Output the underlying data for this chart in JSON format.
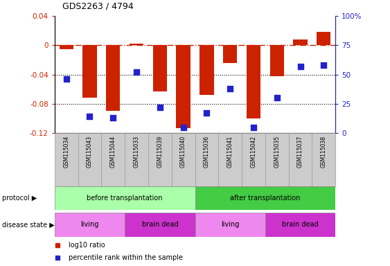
{
  "title": "GDS2263 / 4794",
  "samples": [
    "GSM115034",
    "GSM115043",
    "GSM115044",
    "GSM115033",
    "GSM115039",
    "GSM115040",
    "GSM115036",
    "GSM115041",
    "GSM115042",
    "GSM115035",
    "GSM115037",
    "GSM115038"
  ],
  "log10_ratio": [
    -0.005,
    -0.072,
    -0.09,
    0.002,
    -0.063,
    -0.113,
    -0.068,
    -0.024,
    -0.1,
    -0.042,
    0.008,
    0.018
  ],
  "percentile_rank": [
    46,
    14,
    13,
    52,
    22,
    5,
    17,
    38,
    5,
    30,
    57,
    58
  ],
  "ylim_left": [
    -0.12,
    0.04
  ],
  "ylim_right": [
    0,
    100
  ],
  "yticks_left": [
    -0.12,
    -0.08,
    -0.04,
    0,
    0.04
  ],
  "yticks_right": [
    0,
    25,
    50,
    75,
    100
  ],
  "dotted_hlines": [
    -0.04,
    -0.08
  ],
  "bar_color": "#cc2200",
  "dot_color": "#2222cc",
  "dashed_line_color": "#cc2200",
  "protocol_before_color": "#aaffaa",
  "protocol_after_color": "#44cc44",
  "disease_living_color": "#ee88ee",
  "disease_brain_dead_color": "#cc33cc",
  "sample_box_color": "#cccccc",
  "sample_box_edge": "#999999",
  "protocol_before_label": "before transplantation",
  "protocol_after_label": "after transplantation",
  "living_label": "living",
  "brain_dead_label": "brain dead",
  "protocol_label": "protocol",
  "disease_state_label": "disease state",
  "legend_bar_label": "log10 ratio",
  "legend_dot_label": "percentile rank within the sample"
}
